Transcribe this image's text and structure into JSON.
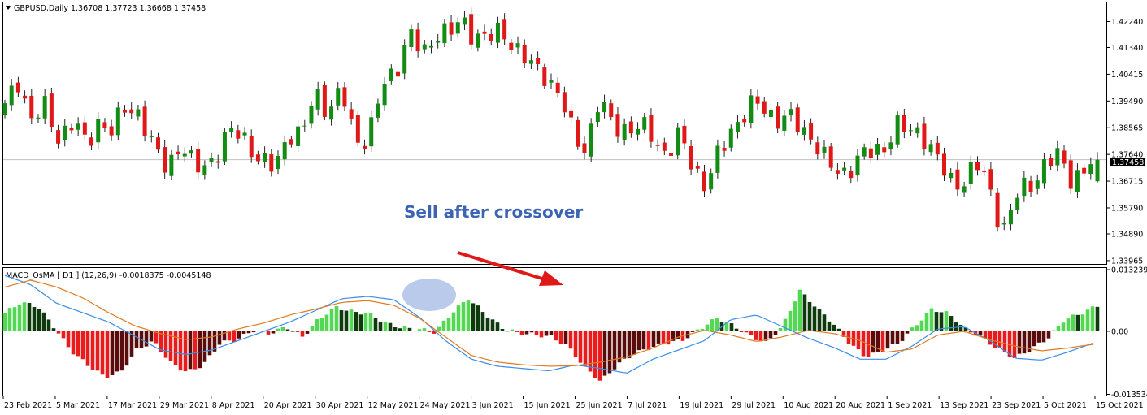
{
  "colors": {
    "bull": "#138c13",
    "bear": "#e01818",
    "hist_up_strong": "#54d854",
    "hist_up_weak": "#0e3a0e",
    "hist_dn_strong": "#e81c1c",
    "hist_dn_weak": "#5a0c0c",
    "macd_line": "#3a8ee6",
    "signal_line": "#e07a20",
    "arrow": "#e01818",
    "ellipse": "#7f9fd8",
    "annotation_text": "#3c64b4"
  },
  "price_panel": {
    "header": "GBPUSD,Daily  1.36708 1.37723 1.36668 1.37458",
    "current_price_label": "1.37458",
    "annotation": "Sell after crossover"
  },
  "macd_panel": {
    "header": "MACD_OsMA [ D1 ] (12,26,9)  -0.0018375 -0.0045148"
  },
  "chart_data": [
    {
      "type": "candlestick",
      "symbol": "GBPUSD",
      "timeframe": "Daily",
      "ohlc_last": {
        "open": 1.36708,
        "high": 1.37723,
        "low": 1.36668,
        "close": 1.37458
      },
      "current_price": 1.37458,
      "ylim": [
        1.3385,
        1.429
      ],
      "y_ticks": [
        "1.42240",
        "1.41340",
        "1.40415",
        "1.39490",
        "1.38565",
        "1.37640",
        "1.36715",
        "1.35790",
        "1.34890",
        "1.33965"
      ],
      "x_ticks": [
        "23 Feb 2021",
        "5 Mar 2021",
        "17 Mar 2021",
        "29 Mar 2021",
        "8 Apr 2021",
        "20 Apr 2021",
        "30 Apr 2021",
        "12 May 2021",
        "24 May 2021",
        "3 Jun 2021",
        "15 Jun 2021",
        "25 Jun 2021",
        "7 Jul 2021",
        "19 Jul 2021",
        "29 Jul 2021",
        "10 Aug 2021",
        "20 Aug 2021",
        "1 Sep 2021",
        "13 Sep 2021",
        "23 Sep 2021",
        "5 Oct 2021",
        "15 Oct 2021"
      ],
      "close_path": [
        1.392,
        1.403,
        1.388,
        1.392,
        1.383,
        1.387,
        1.38,
        1.389,
        1.383,
        1.394,
        1.391,
        1.377,
        1.373,
        1.38,
        1.371,
        1.374,
        1.378,
        1.385,
        1.382,
        1.372,
        1.372,
        1.385,
        1.381,
        1.399,
        1.392,
        1.397,
        1.382,
        1.383,
        1.399,
        1.407,
        1.418,
        1.41,
        1.42,
        1.418,
        1.422,
        1.418,
        1.416,
        1.419,
        1.413,
        1.406,
        1.405,
        1.398,
        1.384,
        1.379,
        1.394,
        1.387,
        1.386,
        1.385,
        1.383,
        1.377,
        1.382,
        1.373,
        1.366,
        1.376,
        1.387,
        1.392,
        1.393,
        1.39,
        1.389,
        1.385,
        1.383,
        1.372,
        1.369,
        1.375,
        1.376,
        1.378,
        1.387,
        1.383,
        1.385,
        1.376,
        1.366,
        1.368,
        1.373,
        1.364,
        1.351,
        1.361,
        1.366,
        1.373,
        1.375,
        1.369,
        1.371,
        1.374
      ],
      "candle_count": 165
    },
    {
      "type": "bar",
      "name": "MACD_OsMA",
      "params": "(12,26,9)",
      "values_shown": [
        -0.0018375,
        -0.0045148
      ],
      "ylim": [
        -0.0138,
        0.0136
      ],
      "y_ticks": [
        "0.0132397",
        "0.00",
        "-0.013534"
      ],
      "histogram_path": [
        0.004,
        0.0062,
        0.0053,
        0.0008,
        -0.0042,
        -0.0072,
        -0.0098,
        -0.0088,
        -0.0038,
        -0.0022,
        -0.0068,
        -0.0088,
        -0.0072,
        -0.0025,
        -0.0018,
        0.0002,
        -0.0005,
        0.001,
        -0.0012,
        0.0028,
        0.0052,
        0.0042,
        0.0038,
        0.0018,
        0.0007,
        0.0005,
        -0.0002,
        0.004,
        0.007,
        0.0038,
        0.0008,
        -0.0003,
        -0.0007,
        -0.0012,
        -0.0032,
        -0.0076,
        -0.0108,
        -0.0072,
        -0.0048,
        -0.0035,
        -0.0025,
        -0.0018,
        0.0006,
        0.0028,
        0.0012,
        -0.001,
        -0.0025,
        0.0012,
        0.0088,
        0.0052,
        0.0018,
        -0.0025,
        -0.0055,
        -0.0042,
        -0.0025,
        0.0012,
        0.0048,
        0.0038,
        0.0005,
        -0.0012,
        -0.0038,
        -0.0058,
        -0.0038,
        -0.0015,
        0.0025,
        0.0038,
        0.0055
      ],
      "series": [
        {
          "name": "MACD",
          "values": [
            0.012,
            0.01,
            0.006,
            0.004,
            0.002,
            -0.001,
            -0.004,
            -0.005,
            -0.004,
            -0.002,
            0.0,
            0.002,
            0.0045,
            0.007,
            0.0075,
            0.0068,
            0.003,
            -0.002,
            -0.006,
            -0.0075,
            -0.008,
            -0.0085,
            -0.0072,
            -0.008,
            -0.009,
            -0.006,
            -0.004,
            -0.002,
            0.0025,
            0.0035,
            0.001,
            -0.0015,
            -0.0035,
            -0.006,
            -0.006,
            -0.0032,
            0.0005,
            0.001,
            -0.002,
            -0.0058,
            -0.0062,
            -0.0045,
            -0.0025
          ]
        },
        {
          "name": "Signal",
          "values": [
            0.0095,
            0.011,
            0.0095,
            0.0072,
            0.004,
            0.0012,
            -0.0005,
            -0.0018,
            -0.0012,
            0.0005,
            0.0018,
            0.0035,
            0.0048,
            0.0062,
            0.0066,
            0.0056,
            0.0028,
            -0.0012,
            -0.0052,
            -0.0066,
            -0.0072,
            -0.0075,
            -0.0074,
            -0.0066,
            -0.0055,
            -0.0036,
            -0.0012,
            0.0002,
            -0.0008,
            -0.0022,
            -0.0012,
            0.0002,
            -0.0005,
            -0.002,
            -0.0045,
            -0.0038,
            -0.0008,
            0.0,
            -0.0018,
            -0.0032,
            -0.0042,
            -0.0036,
            -0.0028
          ]
        }
      ]
    }
  ]
}
